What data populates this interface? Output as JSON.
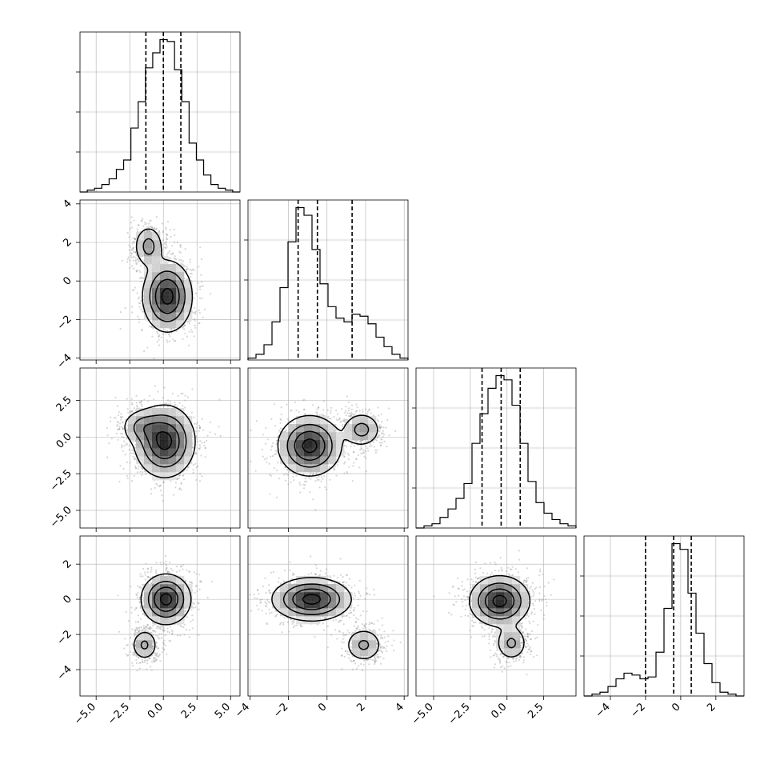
{
  "chart_data": {
    "type": "corner",
    "variables": [
      {
        "range": [
          -6.2,
          5.7
        ],
        "ticks": [
          -5.0,
          -2.5,
          0.0,
          2.5,
          5.0
        ],
        "tick_labels": [
          "−5.0",
          "−2.5",
          "0.0",
          "2.5",
          "5.0"
        ],
        "quantiles": [
          -1.3,
          0.0,
          1.3
        ]
      },
      {
        "range": [
          -4.1,
          4.2
        ],
        "ticks": [
          -4,
          -2,
          0,
          2,
          4
        ],
        "tick_labels": [
          "−4",
          "−2",
          "0",
          "2",
          "4"
        ],
        "quantiles": [
          -1.5,
          -0.5,
          1.3
        ]
      },
      {
        "range": [
          -6.2,
          4.7
        ],
        "ticks": [
          -5.0,
          -2.5,
          0.0,
          2.5
        ],
        "tick_labels": [
          "−5.0",
          "−2.5",
          "0.0",
          "2.5"
        ],
        "quantiles": [
          -1.7,
          -0.4,
          0.9
        ]
      },
      {
        "range": [
          -5.5,
          3.6
        ],
        "ticks": [
          -4,
          -2,
          0,
          2
        ],
        "tick_labels": [
          "−4",
          "−2",
          "0",
          "2"
        ],
        "quantiles": [
          -2.0,
          -0.4,
          0.6
        ]
      }
    ],
    "histograms": [
      {
        "counts": [
          0,
          1,
          2,
          4,
          7,
          12,
          17,
          34,
          48,
          66,
          74,
          81,
          80,
          65,
          48,
          26,
          17,
          9,
          4,
          2,
          1,
          0
        ]
      },
      {
        "counts": [
          1,
          3,
          8,
          20,
          38,
          62,
          80,
          76,
          58,
          40,
          28,
          22,
          20,
          24,
          23,
          19,
          12,
          7,
          3,
          1
        ]
      },
      {
        "counts": [
          0,
          1,
          2,
          5,
          9,
          14,
          21,
          40,
          54,
          66,
          72,
          70,
          58,
          40,
          22,
          12,
          7,
          4,
          2,
          1
        ]
      },
      {
        "counts": [
          0,
          1,
          2,
          5,
          9,
          12,
          11,
          9,
          10,
          23,
          46,
          80,
          77,
          54,
          33,
          17,
          7,
          2,
          1,
          0
        ]
      }
    ],
    "blobs": {
      "1,0": [
        {
          "cx": 0.3,
          "cy": -0.8,
          "sx": 0.9,
          "sy": 0.9,
          "w": 1.0
        },
        {
          "cx": -1.1,
          "cy": 1.8,
          "sx": 0.55,
          "sy": 0.55,
          "w": 0.45
        }
      ],
      "2,0": [
        {
          "cx": 0.1,
          "cy": -0.3,
          "sx": 1.1,
          "sy": 1.2,
          "w": 1.0
        },
        {
          "cx": -1.6,
          "cy": 0.7,
          "sx": 0.8,
          "sy": 0.6,
          "w": 0.35
        }
      ],
      "2,1": [
        {
          "cx": -0.9,
          "cy": -0.6,
          "sx": 0.8,
          "sy": 1.0,
          "w": 1.0
        },
        {
          "cx": 1.8,
          "cy": 0.5,
          "sx": 0.5,
          "sy": 0.6,
          "w": 0.45
        }
      ],
      "3,0": [
        {
          "cx": 0.2,
          "cy": 0.0,
          "sx": 0.9,
          "sy": 0.7,
          "w": 1.0
        },
        {
          "cx": -1.4,
          "cy": -2.6,
          "sx": 0.5,
          "sy": 0.45,
          "w": 0.4
        }
      ],
      "3,1": [
        {
          "cx": -0.8,
          "cy": 0.0,
          "sx": 1.0,
          "sy": 0.6,
          "w": 1.0
        },
        {
          "cx": 1.9,
          "cy": -2.6,
          "sx": 0.5,
          "sy": 0.5,
          "w": 0.4
        }
      ],
      "3,2": [
        {
          "cx": -0.5,
          "cy": -0.1,
          "sx": 1.0,
          "sy": 0.7,
          "w": 1.0
        },
        {
          "cx": 0.3,
          "cy": -2.5,
          "sx": 0.55,
          "sy": 0.5,
          "w": 0.4
        }
      ]
    },
    "grid": true,
    "xlabel": "",
    "ylabel": ""
  }
}
